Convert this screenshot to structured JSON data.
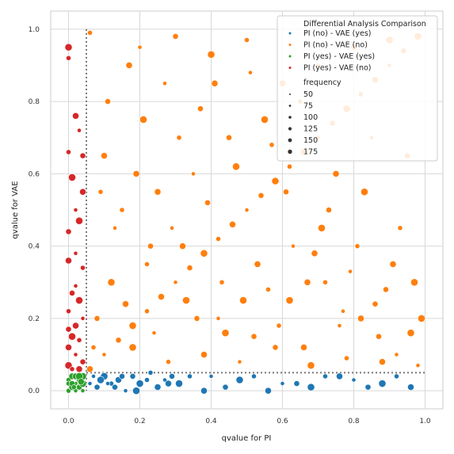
{
  "chart_data": {
    "type": "scatter",
    "xlabel": "qvalue for PI",
    "ylabel": "qvalue for VAE",
    "xlim": [
      -0.05,
      1.05
    ],
    "ylim": [
      -0.05,
      1.05
    ],
    "xticks": [
      "0.0",
      "0.2",
      "0.4",
      "0.6",
      "0.8",
      "1.0"
    ],
    "yticks": [
      "0.0",
      "0.2",
      "0.4",
      "0.6",
      "0.8",
      "1.0"
    ],
    "grid": true,
    "threshold": 0.05,
    "legend": {
      "placement": "top-right",
      "hue_title": "Differential Analysis Comparison",
      "size_title": "frequency",
      "size_labels": [
        "50",
        "75",
        "100",
        "125",
        "150",
        "175"
      ]
    },
    "series": [
      {
        "name": "PI (no)  - VAE (yes)",
        "color": "#1f77b4",
        "points": [
          [
            0.06,
            0.02
          ],
          [
            0.08,
            0.01
          ],
          [
            0.1,
            0.04
          ],
          [
            0.12,
            0.02
          ],
          [
            0.14,
            0.03
          ],
          [
            0.16,
            0.0
          ],
          [
            0.18,
            0.04
          ],
          [
            0.2,
            0.02
          ],
          [
            0.23,
            0.05
          ],
          [
            0.25,
            0.01
          ],
          [
            0.27,
            0.03
          ],
          [
            0.29,
            0.04
          ],
          [
            0.31,
            0.02
          ],
          [
            0.34,
            0.04
          ],
          [
            0.38,
            0.0
          ],
          [
            0.4,
            0.04
          ],
          [
            0.44,
            0.01
          ],
          [
            0.48,
            0.03
          ],
          [
            0.52,
            0.04
          ],
          [
            0.56,
            0.0
          ],
          [
            0.6,
            0.02
          ],
          [
            0.64,
            0.02
          ],
          [
            0.68,
            0.01
          ],
          [
            0.72,
            0.04
          ],
          [
            0.76,
            0.04
          ],
          [
            0.8,
            0.03
          ],
          [
            0.84,
            0.01
          ],
          [
            0.88,
            0.02
          ],
          [
            0.92,
            0.04
          ],
          [
            0.96,
            0.01
          ],
          [
            0.07,
            0.04
          ],
          [
            0.13,
            0.01
          ],
          [
            0.19,
            0.0
          ],
          [
            0.22,
            0.03
          ],
          [
            0.28,
            0.02
          ],
          [
            0.11,
            0.02
          ],
          [
            0.15,
            0.04
          ],
          [
            0.09,
            0.03
          ]
        ]
      },
      {
        "name": "PI (no)  - VAE (no)",
        "color": "#ff7f0e",
        "points": [
          [
            0.06,
            0.06
          ],
          [
            0.1,
            0.1
          ],
          [
            0.14,
            0.14
          ],
          [
            0.18,
            0.18
          ],
          [
            0.22,
            0.22
          ],
          [
            0.26,
            0.26
          ],
          [
            0.3,
            0.3
          ],
          [
            0.34,
            0.34
          ],
          [
            0.38,
            0.38
          ],
          [
            0.42,
            0.42
          ],
          [
            0.46,
            0.46
          ],
          [
            0.5,
            0.5
          ],
          [
            0.54,
            0.54
          ],
          [
            0.58,
            0.58
          ],
          [
            0.62,
            0.62
          ],
          [
            0.66,
            0.66
          ],
          [
            0.7,
            0.7
          ],
          [
            0.74,
            0.74
          ],
          [
            0.78,
            0.78
          ],
          [
            0.82,
            0.82
          ],
          [
            0.86,
            0.86
          ],
          [
            0.9,
            0.9
          ],
          [
            0.94,
            0.94
          ],
          [
            0.98,
            0.98
          ],
          [
            0.06,
            0.99
          ],
          [
            0.1,
            0.65
          ],
          [
            0.2,
            0.95
          ],
          [
            0.3,
            0.98
          ],
          [
            0.4,
            0.93
          ],
          [
            0.5,
            0.97
          ],
          [
            0.6,
            0.85
          ],
          [
            0.7,
            0.9
          ],
          [
            0.8,
            0.95
          ],
          [
            0.9,
            0.97
          ],
          [
            0.15,
            0.5
          ],
          [
            0.25,
            0.55
          ],
          [
            0.35,
            0.6
          ],
          [
            0.45,
            0.7
          ],
          [
            0.55,
            0.75
          ],
          [
            0.65,
            0.8
          ],
          [
            0.75,
            0.6
          ],
          [
            0.85,
            0.7
          ],
          [
            0.95,
            0.65
          ],
          [
            0.12,
            0.3
          ],
          [
            0.22,
            0.35
          ],
          [
            0.32,
            0.4
          ],
          [
            0.42,
            0.2
          ],
          [
            0.52,
            0.15
          ],
          [
            0.62,
            0.25
          ],
          [
            0.72,
            0.3
          ],
          [
            0.82,
            0.2
          ],
          [
            0.92,
            0.1
          ],
          [
            0.08,
            0.2
          ],
          [
            0.18,
            0.12
          ],
          [
            0.28,
            0.08
          ],
          [
            0.38,
            0.1
          ],
          [
            0.48,
            0.08
          ],
          [
            0.58,
            0.12
          ],
          [
            0.68,
            0.07
          ],
          [
            0.78,
            0.09
          ],
          [
            0.88,
            0.08
          ],
          [
            0.98,
            0.07
          ],
          [
            0.11,
            0.8
          ],
          [
            0.21,
            0.75
          ],
          [
            0.31,
            0.7
          ],
          [
            0.41,
            0.85
          ],
          [
            0.51,
            0.88
          ],
          [
            0.61,
            0.55
          ],
          [
            0.71,
            0.45
          ],
          [
            0.81,
            0.4
          ],
          [
            0.91,
            0.35
          ],
          [
            0.13,
            0.45
          ],
          [
            0.23,
            0.4
          ],
          [
            0.33,
            0.25
          ],
          [
            0.43,
            0.3
          ],
          [
            0.53,
            0.35
          ],
          [
            0.63,
            0.4
          ],
          [
            0.73,
            0.5
          ],
          [
            0.83,
            0.55
          ],
          [
            0.93,
            0.45
          ],
          [
            0.17,
            0.9
          ],
          [
            0.27,
            0.85
          ],
          [
            0.37,
            0.78
          ],
          [
            0.47,
            0.62
          ],
          [
            0.57,
            0.68
          ],
          [
            0.67,
            0.3
          ],
          [
            0.77,
            0.22
          ],
          [
            0.87,
            0.15
          ],
          [
            0.97,
            0.3
          ],
          [
            0.09,
            0.55
          ],
          [
            0.19,
            0.6
          ],
          [
            0.29,
            0.45
          ],
          [
            0.39,
            0.52
          ],
          [
            0.49,
            0.25
          ],
          [
            0.59,
            0.18
          ],
          [
            0.69,
            0.38
          ],
          [
            0.79,
            0.33
          ],
          [
            0.89,
            0.28
          ],
          [
            0.99,
            0.2
          ],
          [
            0.07,
            0.12
          ],
          [
            0.16,
            0.24
          ],
          [
            0.24,
            0.16
          ],
          [
            0.36,
            0.2
          ],
          [
            0.44,
            0.16
          ],
          [
            0.56,
            0.28
          ],
          [
            0.66,
            0.12
          ],
          [
            0.76,
            0.18
          ],
          [
            0.86,
            0.24
          ],
          [
            0.96,
            0.16
          ]
        ]
      },
      {
        "name": "PI (yes) - VAE (yes)",
        "color": "#2ca02c",
        "points": [
          [
            0.0,
            0.0
          ],
          [
            0.01,
            0.01
          ],
          [
            0.02,
            0.02
          ],
          [
            0.03,
            0.03
          ],
          [
            0.04,
            0.04
          ],
          [
            0.0,
            0.03
          ],
          [
            0.01,
            0.04
          ],
          [
            0.02,
            0.0
          ],
          [
            0.03,
            0.01
          ],
          [
            0.04,
            0.02
          ],
          [
            0.0,
            0.02
          ],
          [
            0.02,
            0.04
          ],
          [
            0.04,
            0.0
          ],
          [
            0.01,
            0.02
          ],
          [
            0.03,
            0.04
          ],
          [
            0.015,
            0.01
          ],
          [
            0.035,
            0.025
          ]
        ]
      },
      {
        "name": "PI (yes) - VAE (no)",
        "color": "#d62728",
        "points": [
          [
            0.0,
            0.95
          ],
          [
            0.0,
            0.92
          ],
          [
            0.02,
            0.76
          ],
          [
            0.03,
            0.72
          ],
          [
            0.04,
            0.65
          ],
          [
            0.01,
            0.59
          ],
          [
            0.0,
            0.66
          ],
          [
            0.04,
            0.55
          ],
          [
            0.02,
            0.5
          ],
          [
            0.0,
            0.44
          ],
          [
            0.03,
            0.47
          ],
          [
            0.04,
            0.34
          ],
          [
            0.0,
            0.36
          ],
          [
            0.02,
            0.38
          ],
          [
            0.01,
            0.27
          ],
          [
            0.03,
            0.25
          ],
          [
            0.0,
            0.22
          ],
          [
            0.02,
            0.18
          ],
          [
            0.04,
            0.2
          ],
          [
            0.0,
            0.17
          ],
          [
            0.01,
            0.15
          ],
          [
            0.03,
            0.14
          ],
          [
            0.0,
            0.12
          ],
          [
            0.02,
            0.1
          ],
          [
            0.04,
            0.08
          ],
          [
            0.0,
            0.07
          ],
          [
            0.01,
            0.06
          ],
          [
            0.03,
            0.06
          ],
          [
            0.02,
            0.29
          ]
        ]
      }
    ]
  }
}
